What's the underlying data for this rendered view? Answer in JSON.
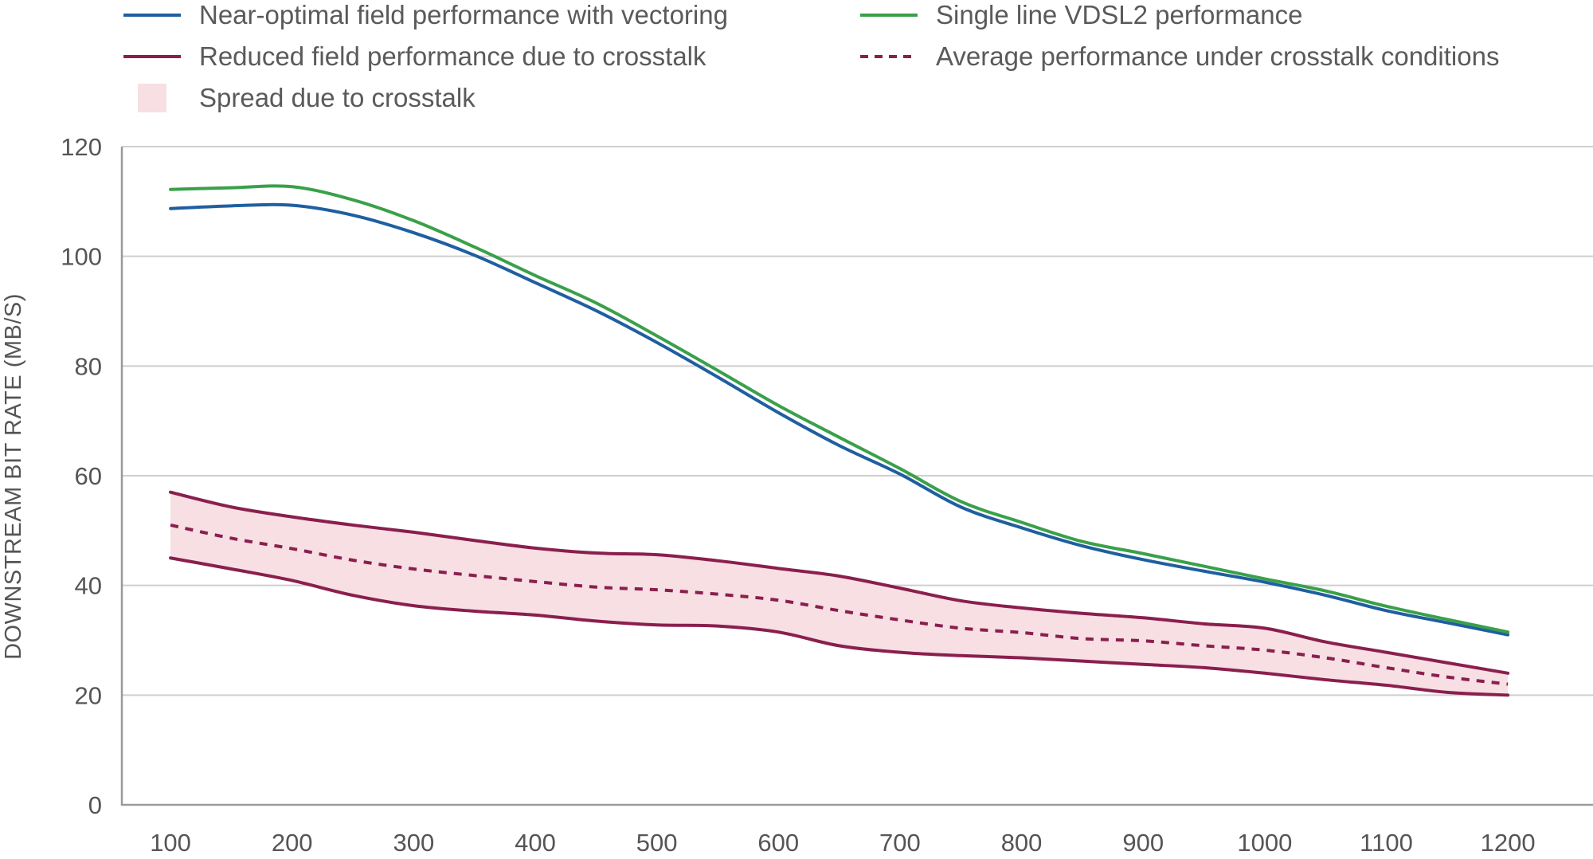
{
  "chart_data": {
    "type": "line",
    "title": "",
    "xlabel": "",
    "ylabel": "DOWNSTREAM BIT RATE (MB/S)",
    "xlim": [
      60,
      1270
    ],
    "ylim": [
      0,
      120
    ],
    "x_ticks": [
      100,
      200,
      300,
      400,
      500,
      600,
      700,
      800,
      900,
      1000,
      1100,
      1200
    ],
    "y_ticks": [
      0,
      20,
      40,
      60,
      80,
      100,
      120
    ],
    "grid": "horizontal",
    "legend_placement": "top",
    "x": [
      100,
      150,
      200,
      250,
      300,
      350,
      400,
      450,
      500,
      550,
      600,
      650,
      700,
      750,
      800,
      850,
      900,
      950,
      1000,
      1050,
      1100,
      1150,
      1200
    ],
    "series": [
      {
        "name": "Near-optimal field performance with vectoring",
        "color": "#1f5fa0",
        "style": "solid",
        "values": [
          108.7,
          109.2,
          109.3,
          107.5,
          104.3,
          100.2,
          95.2,
          90.1,
          84.3,
          78.0,
          71.5,
          65.5,
          60.3,
          54.3,
          50.5,
          47.2,
          44.7,
          42.6,
          40.6,
          38.2,
          35.4,
          33.2,
          31.0
        ]
      },
      {
        "name": "Single line VDSL2 performance",
        "color": "#3aa04a",
        "style": "solid",
        "values": [
          112.2,
          112.5,
          112.7,
          110.3,
          106.5,
          101.7,
          96.5,
          91.5,
          85.5,
          79.2,
          72.8,
          67.0,
          61.3,
          55.3,
          51.5,
          48.0,
          45.8,
          43.5,
          41.2,
          39.0,
          36.2,
          33.8,
          31.5
        ]
      },
      {
        "name": "Reduced field performance due to crosstalk",
        "color": "#8a1f4e",
        "style": "solid",
        "values": [
          57.0,
          54.3,
          52.5,
          51.0,
          49.7,
          48.2,
          46.8,
          45.9,
          45.6,
          44.5,
          43.1,
          41.7,
          39.5,
          37.2,
          35.9,
          34.9,
          34.1,
          33.0,
          32.2,
          29.7,
          27.8,
          25.9,
          24.0
        ]
      },
      {
        "name": "Reduced field performance due to crosstalk",
        "color": "#8a1f4e",
        "style": "solid",
        "values": [
          45.0,
          43.0,
          40.9,
          38.2,
          36.3,
          35.3,
          34.6,
          33.5,
          32.8,
          32.6,
          31.5,
          29.0,
          27.8,
          27.2,
          26.8,
          26.2,
          25.6,
          25.0,
          24.0,
          22.8,
          21.8,
          20.5,
          20.0
        ]
      },
      {
        "name": "Average performance under crosstalk conditions",
        "color": "#8a1f4e",
        "style": "dashed",
        "values": [
          51.0,
          48.6,
          46.7,
          44.6,
          43.0,
          41.8,
          40.7,
          39.7,
          39.2,
          38.4,
          37.3,
          35.4,
          33.7,
          32.2,
          31.4,
          30.3,
          29.9,
          29.0,
          28.2,
          26.8,
          25.0,
          23.3,
          22.0
        ]
      }
    ],
    "band": {
      "name": "Spread due to crosstalk",
      "color": "#f7dfe3",
      "upper_series_index": 2,
      "lower_series_index": 3
    }
  },
  "legend": [
    {
      "label": "Near-optimal field performance with vectoring",
      "color": "#1f5fa0",
      "kind": "line"
    },
    {
      "label": "Single line VDSL2 performance",
      "color": "#3aa04a",
      "kind": "line"
    },
    {
      "label": "Reduced field performance due to crosstalk",
      "color": "#8a1f4e",
      "kind": "line"
    },
    {
      "label": "Average performance under crosstalk conditions",
      "color": "#8a1f4e",
      "kind": "dashed"
    },
    {
      "label": "Spread due to crosstalk",
      "color": "#f7dfe3",
      "kind": "box"
    }
  ]
}
